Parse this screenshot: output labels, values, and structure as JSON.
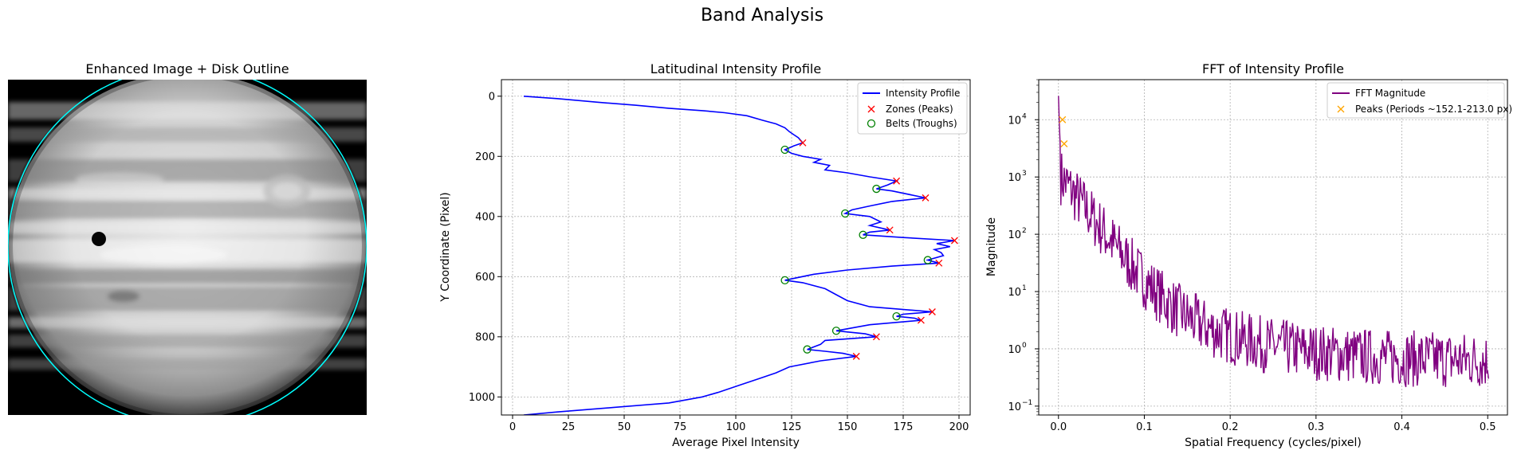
{
  "figure": {
    "title": "Band Analysis"
  },
  "image_panel": {
    "title": "Enhanced Image + Disk Outline",
    "outline_color": "#00ffff"
  },
  "chart_data": [
    {
      "type": "line",
      "title": "Latitudinal Intensity Profile",
      "xlabel": "Average Pixel Intensity",
      "ylabel": "Y Coordinate (Pixel)",
      "xlim": [
        -5,
        205
      ],
      "ylim": [
        1060,
        -55
      ],
      "y_inverted": true,
      "grid": true,
      "legend_position": "top-right",
      "xticks": [
        0,
        25,
        50,
        75,
        100,
        125,
        150,
        175,
        200
      ],
      "yticks": [
        0,
        200,
        400,
        600,
        800,
        1000
      ],
      "series": [
        {
          "name": "Intensity Profile",
          "color": "#0000ff",
          "points": [
            [
              5,
              0
            ],
            [
              20,
              8
            ],
            [
              38,
              20
            ],
            [
              55,
              30
            ],
            [
              70,
              40
            ],
            [
              85,
              48
            ],
            [
              95,
              55
            ],
            [
              105,
              65
            ],
            [
              112,
              80
            ],
            [
              118,
              92
            ],
            [
              122,
              105
            ],
            [
              124,
              118
            ],
            [
              126,
              128
            ],
            [
              128,
              138
            ],
            [
              130,
              155
            ],
            [
              126,
              165
            ],
            [
              122,
              178
            ],
            [
              125,
              190
            ],
            [
              130,
              200
            ],
            [
              138,
              210
            ],
            [
              135,
              220
            ],
            [
              142,
              230
            ],
            [
              140,
              245
            ],
            [
              150,
              255
            ],
            [
              160,
              268
            ],
            [
              172,
              282
            ],
            [
              168,
              295
            ],
            [
              163,
              308
            ],
            [
              170,
              315
            ],
            [
              185,
              338
            ],
            [
              170,
              350
            ],
            [
              160,
              365
            ],
            [
              152,
              378
            ],
            [
              149,
              390
            ],
            [
              160,
              400
            ],
            [
              165,
              418
            ],
            [
              160,
              430
            ],
            [
              169,
              445
            ],
            [
              160,
              452
            ],
            [
              157,
              461
            ],
            [
              175,
              470
            ],
            [
              198,
              480
            ],
            [
              190,
              490
            ],
            [
              196,
              500
            ],
            [
              189,
              510
            ],
            [
              192,
              520
            ],
            [
              193,
              530
            ],
            [
              186,
              545
            ],
            [
              191,
              555
            ],
            [
              170,
              565
            ],
            [
              150,
              578
            ],
            [
              135,
              592
            ],
            [
              122,
              612
            ],
            [
              130,
              620
            ],
            [
              140,
              640
            ],
            [
              145,
              660
            ],
            [
              150,
              680
            ],
            [
              160,
              700
            ],
            [
              188,
              717
            ],
            [
              175,
              725
            ],
            [
              172,
              732
            ],
            [
              180,
              738
            ],
            [
              183,
              745
            ],
            [
              160,
              760
            ],
            [
              145,
              780
            ],
            [
              158,
              790
            ],
            [
              163,
              800
            ],
            [
              140,
              812
            ],
            [
              138,
              825
            ],
            [
              132,
              842
            ],
            [
              140,
              848
            ],
            [
              148,
              855
            ],
            [
              154,
              865
            ],
            [
              138,
              880
            ],
            [
              124,
              900
            ],
            [
              118,
              920
            ],
            [
              110,
              940
            ],
            [
              102,
              960
            ],
            [
              92,
              985
            ],
            [
              85,
              1000
            ],
            [
              70,
              1020
            ],
            [
              45,
              1035
            ],
            [
              20,
              1050
            ],
            [
              5,
              1060
            ]
          ]
        },
        {
          "name": "Zones (Peaks)",
          "marker": "x",
          "color": "#ff0000",
          "points": [
            [
              130,
              155
            ],
            [
              172,
              282
            ],
            [
              185,
              338
            ],
            [
              169,
              445
            ],
            [
              198,
              480
            ],
            [
              191,
              555
            ],
            [
              188,
              717
            ],
            [
              183,
              745
            ],
            [
              163,
              800
            ],
            [
              154,
              865
            ]
          ]
        },
        {
          "name": "Belts (Troughs)",
          "marker": "o",
          "color": "#008000",
          "points": [
            [
              122,
              178
            ],
            [
              163,
              308
            ],
            [
              149,
              390
            ],
            [
              157,
              461
            ],
            [
              186,
              545
            ],
            [
              122,
              612
            ],
            [
              172,
              732
            ],
            [
              145,
              780
            ],
            [
              132,
              842
            ]
          ]
        }
      ]
    },
    {
      "type": "line",
      "title": "FFT of Intensity Profile",
      "xlabel": "Spatial Frequency (cycles/pixel)",
      "ylabel": "Magnitude",
      "xlim": [
        -0.023,
        0.523
      ],
      "ylim": [
        0.07,
        50000
      ],
      "y_scale": "log",
      "grid": true,
      "legend_position": "top-right",
      "xticks": [
        0.0,
        0.1,
        0.2,
        0.3,
        0.4,
        0.5
      ],
      "yticks": [
        0.1,
        1,
        10,
        100,
        1000,
        10000
      ],
      "ytick_labels": [
        "10",
        "10",
        "10",
        "10",
        "10",
        "10"
      ],
      "ytick_exponents": [
        "−1",
        "0",
        "1",
        "2",
        "3",
        "4"
      ],
      "series": [
        {
          "name": "FFT Magnitude",
          "color": "#800080"
        },
        {
          "name": "Peaks (Periods ~152.1-213.0 px)",
          "marker": "x",
          "color": "#ffa500",
          "points": [
            [
              0.0047,
              10000
            ],
            [
              0.0066,
              3800
            ]
          ]
        }
      ]
    }
  ]
}
